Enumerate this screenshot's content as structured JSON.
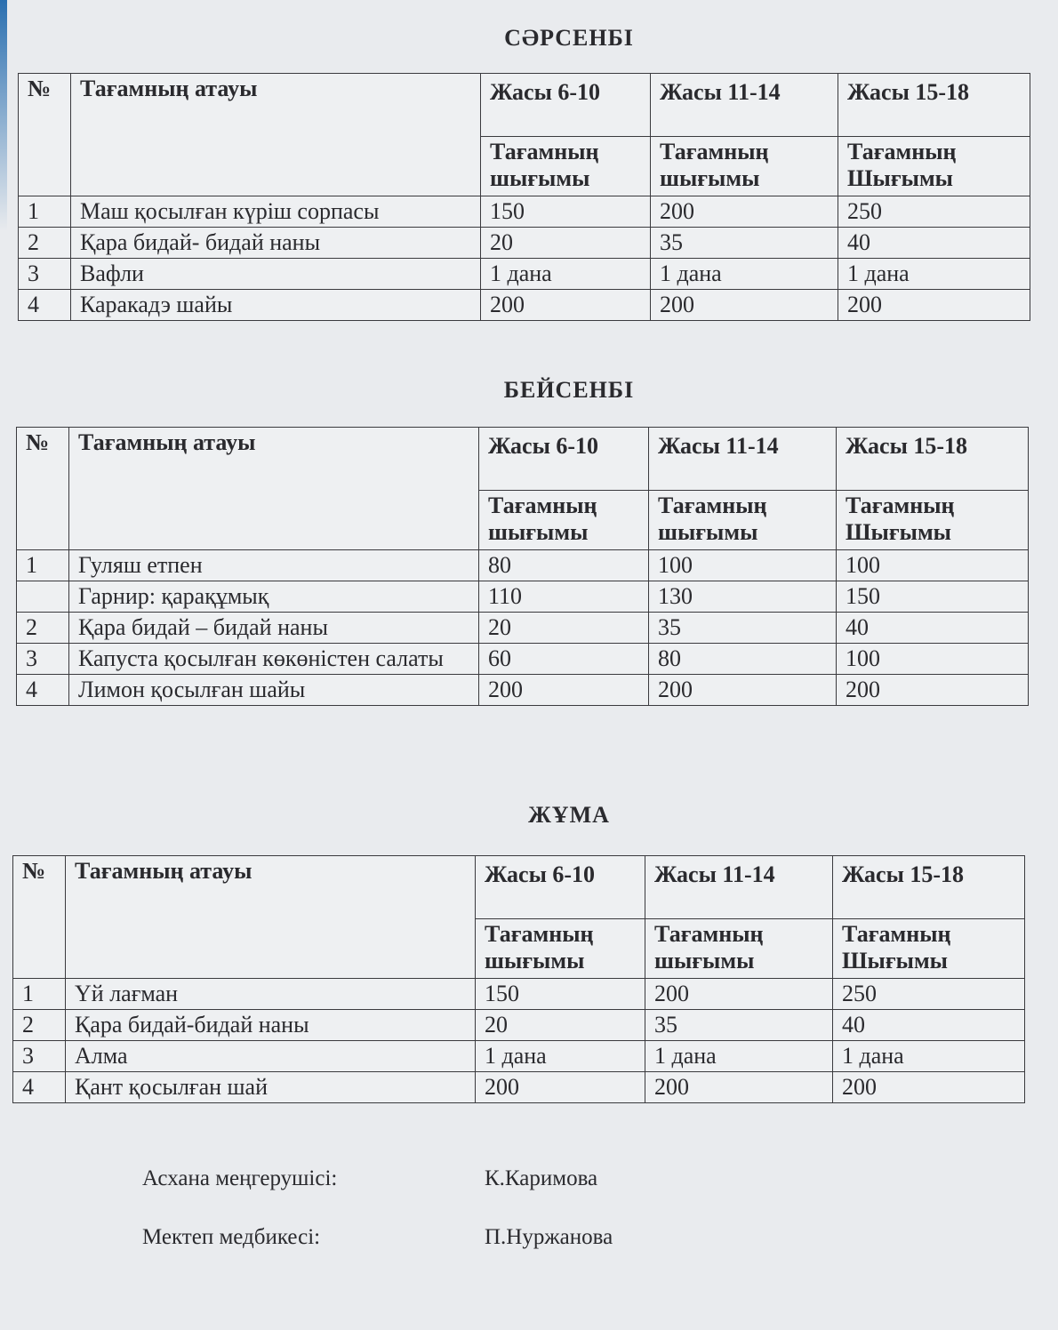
{
  "columns": {
    "number": "№",
    "name": "Тағамның атауы",
    "ages": [
      "Жасы 6-10",
      "Жасы 11-14",
      "Жасы 15-18"
    ],
    "output": [
      "Тағамның шығымы",
      "Тағамның шығымы",
      "Тағамның Шығымы"
    ]
  },
  "days": [
    {
      "title": "СӘРСЕНБІ",
      "rows": [
        {
          "no": "1",
          "name": "Маш қосылған күріш сорпасы",
          "v": [
            "150",
            "200",
            "250"
          ]
        },
        {
          "no": "2",
          "name": "Қара бидай- бидай наны",
          "v": [
            "20",
            "35",
            "40"
          ]
        },
        {
          "no": "3",
          "name": "Вафли",
          "v": [
            "1 дана",
            "1 дана",
            "1 дана"
          ]
        },
        {
          "no": "4",
          "name": "Каракадэ шайы",
          "v": [
            "200",
            "200",
            "200"
          ]
        }
      ]
    },
    {
      "title": "БЕЙСЕНБІ",
      "rows": [
        {
          "no": "1",
          "name": "Гуляш етпен",
          "v": [
            "80",
            "100",
            "100"
          ]
        },
        {
          "no": "",
          "name": "Гарнир: қарақұмық",
          "v": [
            "110",
            "130",
            "150"
          ]
        },
        {
          "no": "2",
          "name": "Қара бидай – бидай наны",
          "v": [
            "20",
            "35",
            "40"
          ]
        },
        {
          "no": "3",
          "name": "Капуста қосылған көкөністен салаты",
          "v": [
            "60",
            "80",
            "100"
          ]
        },
        {
          "no": "4",
          "name": "Лимон қосылған шайы",
          "v": [
            "200",
            "200",
            "200"
          ]
        }
      ]
    },
    {
      "title": "ЖҰМА",
      "rows": [
        {
          "no": "1",
          "name": "Үй лағман",
          "v": [
            "150",
            "200",
            "250"
          ]
        },
        {
          "no": "2",
          "name": "Қара бидай-бидай наны",
          "v": [
            "20",
            "35",
            "40"
          ]
        },
        {
          "no": "3",
          "name": "Алма",
          "v": [
            "1 дана",
            "1 дана",
            "1 дана"
          ]
        },
        {
          "no": "4",
          "name": "Қант қосылған шай",
          "v": [
            "200",
            "200",
            "200"
          ]
        }
      ]
    }
  ],
  "signatures": [
    {
      "role": "Асхана меңгерушісі:",
      "name": "К.Каримова"
    },
    {
      "role": "Мектеп медбикесі:",
      "name": "П.Нуржанова"
    }
  ]
}
